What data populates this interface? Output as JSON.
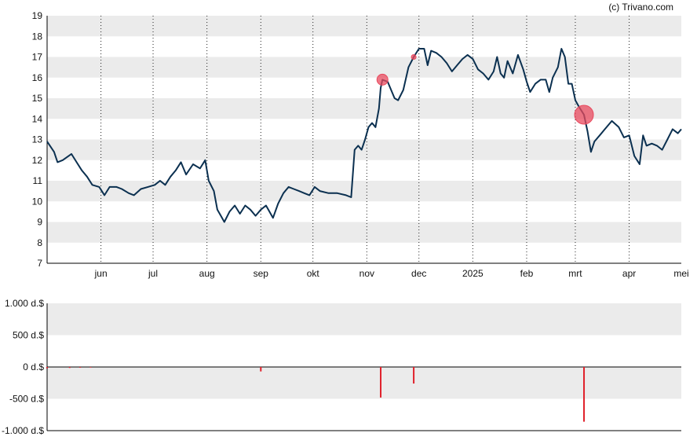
{
  "credit": "(c) Trivano.com",
  "colors": {
    "price_line": "#0b3050",
    "band": "#ebebeb",
    "marker": "#e8495e",
    "bar": "#e0202a",
    "axis": "#000000",
    "vgrid": "#222222"
  },
  "chart_data": [
    {
      "type": "line",
      "title": "",
      "xlabel": "",
      "ylabel": "",
      "ylim": [
        7,
        19
      ],
      "yticks": [
        "7",
        "8",
        "9",
        "10",
        "11",
        "12",
        "13",
        "14",
        "15",
        "16",
        "17",
        "18",
        "19"
      ],
      "xlim": [
        "2024-05-01",
        "2025-05-01"
      ],
      "xticks": [
        {
          "label": "jun",
          "date": "2024-06-01"
        },
        {
          "label": "jul",
          "date": "2024-07-01"
        },
        {
          "label": "aug",
          "date": "2024-08-01"
        },
        {
          "label": "sep",
          "date": "2024-09-01"
        },
        {
          "label": "okt",
          "date": "2024-10-01"
        },
        {
          "label": "nov",
          "date": "2024-11-01"
        },
        {
          "label": "dec",
          "date": "2024-12-01"
        },
        {
          "label": "2025",
          "date": "2025-01-01"
        },
        {
          "label": "feb",
          "date": "2025-02-01"
        },
        {
          "label": "mrt",
          "date": "2025-03-01"
        },
        {
          "label": "apr",
          "date": "2025-04-01"
        },
        {
          "label": "mei",
          "date": "2025-05-01"
        }
      ],
      "grid": "alternating horizontal bands, dotted vertical lines at month ticks",
      "series": [
        {
          "points": [
            [
              "2024-05-01",
              12.9
            ],
            [
              "2024-05-05",
              12.4
            ],
            [
              "2024-05-07",
              11.9
            ],
            [
              "2024-05-10",
              12.0
            ],
            [
              "2024-05-15",
              12.3
            ],
            [
              "2024-05-18",
              11.9
            ],
            [
              "2024-05-21",
              11.5
            ],
            [
              "2024-05-24",
              11.2
            ],
            [
              "2024-05-27",
              10.8
            ],
            [
              "2024-05-31",
              10.7
            ],
            [
              "2024-06-03",
              10.3
            ],
            [
              "2024-06-06",
              10.7
            ],
            [
              "2024-06-10",
              10.7
            ],
            [
              "2024-06-13",
              10.6
            ],
            [
              "2024-06-17",
              10.4
            ],
            [
              "2024-06-20",
              10.3
            ],
            [
              "2024-06-24",
              10.6
            ],
            [
              "2024-06-28",
              10.7
            ],
            [
              "2024-07-02",
              10.8
            ],
            [
              "2024-07-05",
              11.0
            ],
            [
              "2024-07-08",
              10.8
            ],
            [
              "2024-07-11",
              11.2
            ],
            [
              "2024-07-14",
              11.5
            ],
            [
              "2024-07-17",
              11.9
            ],
            [
              "2024-07-20",
              11.3
            ],
            [
              "2024-07-24",
              11.8
            ],
            [
              "2024-07-28",
              11.6
            ],
            [
              "2024-07-31",
              12.0
            ],
            [
              "2024-08-02",
              11.0
            ],
            [
              "2024-08-05",
              10.5
            ],
            [
              "2024-08-07",
              9.6
            ],
            [
              "2024-08-09",
              9.3
            ],
            [
              "2024-08-11",
              9.0
            ],
            [
              "2024-08-14",
              9.5
            ],
            [
              "2024-08-17",
              9.8
            ],
            [
              "2024-08-20",
              9.4
            ],
            [
              "2024-08-23",
              9.8
            ],
            [
              "2024-08-26",
              9.6
            ],
            [
              "2024-08-29",
              9.3
            ],
            [
              "2024-09-01",
              9.6
            ],
            [
              "2024-09-04",
              9.8
            ],
            [
              "2024-09-08",
              9.2
            ],
            [
              "2024-09-11",
              9.9
            ],
            [
              "2024-09-14",
              10.4
            ],
            [
              "2024-09-17",
              10.7
            ],
            [
              "2024-09-20",
              10.6
            ],
            [
              "2024-09-23",
              10.5
            ],
            [
              "2024-09-26",
              10.4
            ],
            [
              "2024-09-29",
              10.3
            ],
            [
              "2024-10-02",
              10.7
            ],
            [
              "2024-10-05",
              10.5
            ],
            [
              "2024-10-10",
              10.4
            ],
            [
              "2024-10-15",
              10.4
            ],
            [
              "2024-10-20",
              10.3
            ],
            [
              "2024-10-23",
              10.2
            ],
            [
              "2024-10-25",
              12.5
            ],
            [
              "2024-10-27",
              12.7
            ],
            [
              "2024-10-29",
              12.5
            ],
            [
              "2024-10-31",
              13.0
            ],
            [
              "2024-11-02",
              13.6
            ],
            [
              "2024-11-04",
              13.8
            ],
            [
              "2024-11-06",
              13.6
            ],
            [
              "2024-11-08",
              14.5
            ],
            [
              "2024-11-09",
              15.5
            ],
            [
              "2024-11-10",
              15.9
            ],
            [
              "2024-11-13",
              15.8
            ],
            [
              "2024-11-15",
              15.4
            ],
            [
              "2024-11-17",
              15.0
            ],
            [
              "2024-11-19",
              14.9
            ],
            [
              "2024-11-22",
              15.4
            ],
            [
              "2024-11-25",
              16.5
            ],
            [
              "2024-11-28",
              17.0
            ],
            [
              "2024-12-01",
              17.4
            ],
            [
              "2024-12-04",
              17.4
            ],
            [
              "2024-12-06",
              16.6
            ],
            [
              "2024-12-08",
              17.3
            ],
            [
              "2024-12-11",
              17.2
            ],
            [
              "2024-12-14",
              17.0
            ],
            [
              "2024-12-17",
              16.7
            ],
            [
              "2024-12-20",
              16.3
            ],
            [
              "2024-12-23",
              16.6
            ],
            [
              "2024-12-26",
              16.9
            ],
            [
              "2024-12-29",
              17.1
            ],
            [
              "2025-01-01",
              16.9
            ],
            [
              "2025-01-04",
              16.4
            ],
            [
              "2025-01-07",
              16.2
            ],
            [
              "2025-01-10",
              15.9
            ],
            [
              "2025-01-13",
              16.3
            ],
            [
              "2025-01-15",
              17.0
            ],
            [
              "2025-01-17",
              16.2
            ],
            [
              "2025-01-19",
              16.0
            ],
            [
              "2025-01-21",
              16.8
            ],
            [
              "2025-01-24",
              16.2
            ],
            [
              "2025-01-27",
              17.1
            ],
            [
              "2025-01-30",
              16.4
            ],
            [
              "2025-02-01",
              15.8
            ],
            [
              "2025-02-03",
              15.3
            ],
            [
              "2025-02-06",
              15.7
            ],
            [
              "2025-02-09",
              15.9
            ],
            [
              "2025-02-12",
              15.9
            ],
            [
              "2025-02-14",
              15.3
            ],
            [
              "2025-02-16",
              16.0
            ],
            [
              "2025-02-19",
              16.5
            ],
            [
              "2025-02-21",
              17.4
            ],
            [
              "2025-02-23",
              17.0
            ],
            [
              "2025-02-25",
              15.7
            ],
            [
              "2025-02-27",
              15.7
            ],
            [
              "2025-03-01",
              14.9
            ],
            [
              "2025-03-03",
              14.6
            ],
            [
              "2025-03-06",
              14.2
            ],
            [
              "2025-03-08",
              13.4
            ],
            [
              "2025-03-10",
              12.4
            ],
            [
              "2025-03-12",
              12.9
            ],
            [
              "2025-03-15",
              13.2
            ],
            [
              "2025-03-18",
              13.5
            ],
            [
              "2025-03-22",
              13.9
            ],
            [
              "2025-03-26",
              13.6
            ],
            [
              "2025-03-29",
              13.1
            ],
            [
              "2025-04-01",
              13.2
            ],
            [
              "2025-04-04",
              12.2
            ],
            [
              "2025-04-07",
              11.8
            ],
            [
              "2025-04-09",
              13.2
            ],
            [
              "2025-04-11",
              12.7
            ],
            [
              "2025-04-14",
              12.8
            ],
            [
              "2025-04-17",
              12.7
            ],
            [
              "2025-04-20",
              12.5
            ],
            [
              "2025-04-23",
              13.0
            ],
            [
              "2025-04-26",
              13.5
            ],
            [
              "2025-04-29",
              13.3
            ],
            [
              "2025-05-01",
              13.5
            ]
          ]
        }
      ],
      "annotations": [
        {
          "date": "2024-11-10",
          "value": 15.9,
          "size": "medium"
        },
        {
          "date": "2024-11-28",
          "value": 17.0,
          "size": "small"
        },
        {
          "date": "2025-03-06",
          "value": 14.2,
          "size": "large"
        }
      ]
    },
    {
      "type": "bar",
      "title": "",
      "xlabel": "",
      "ylabel": "",
      "ylim": [
        -1000,
        1000
      ],
      "yticks": [
        "1.000 d.$",
        "500 d.$",
        "0 d.$",
        "-500 d.$",
        "-1.000 d.$"
      ],
      "yticks_values": [
        1000,
        500,
        0,
        -500,
        -1000
      ],
      "xlim": [
        "2024-05-01",
        "2025-05-01"
      ],
      "series": [
        {
          "points": [
            [
              "2024-05-01",
              -20
            ],
            [
              "2024-05-14",
              -15
            ],
            [
              "2024-05-20",
              -12
            ],
            [
              "2024-05-26",
              -10
            ],
            [
              "2024-09-01",
              -70
            ],
            [
              "2024-11-09",
              -480
            ],
            [
              "2024-11-28",
              -260
            ],
            [
              "2025-03-06",
              -860
            ]
          ]
        }
      ]
    }
  ]
}
